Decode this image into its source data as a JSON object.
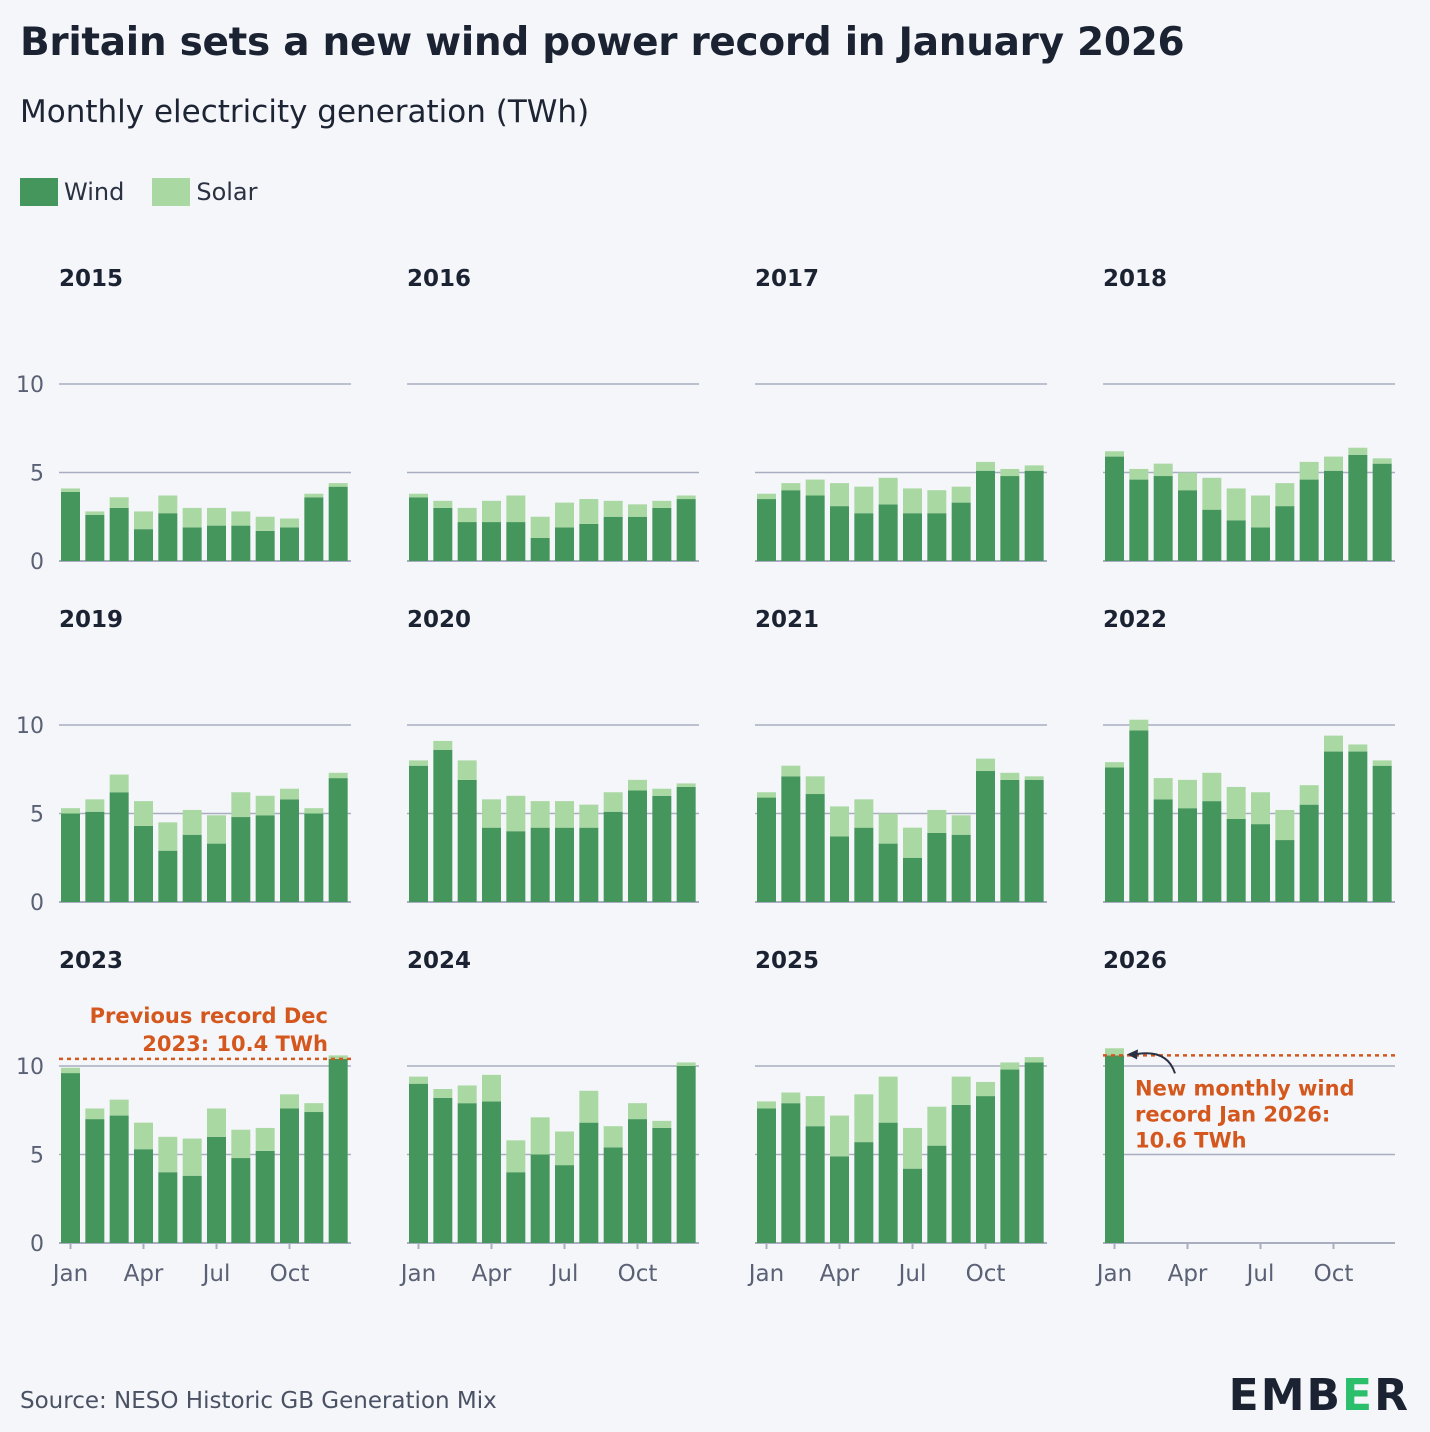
{
  "header": {
    "title": "Britain sets a new wind power record in January 2026",
    "subtitle": "Monthly electricity generation (TWh)"
  },
  "legend": [
    {
      "label": "Wind",
      "color": "#45965c"
    },
    {
      "label": "Solar",
      "color": "#a9d8a3"
    }
  ],
  "footer": {
    "source": "Source: NESO Historic GB Generation Mix",
    "logo": {
      "left": "EMB",
      "mid": "E",
      "right": "R"
    }
  },
  "chart_data": {
    "type": "bar",
    "stacked": true,
    "grid": true,
    "facet_layout": "3x4 small multiples",
    "ylim": [
      0,
      10
    ],
    "yticks": [
      0,
      5,
      10
    ],
    "x_tick_labels": [
      "Jan",
      "Apr",
      "Jul",
      "Oct"
    ],
    "categories": [
      "Jan",
      "Feb",
      "Mar",
      "Apr",
      "May",
      "Jun",
      "Jul",
      "Aug",
      "Sep",
      "Oct",
      "Nov",
      "Dec"
    ],
    "panels": [
      {
        "year": "2015",
        "wind": [
          3.9,
          2.6,
          3.0,
          1.8,
          2.7,
          1.9,
          2.0,
          2.0,
          1.7,
          1.9,
          3.6,
          4.2
        ],
        "solar": [
          0.2,
          0.2,
          0.6,
          1.0,
          1.0,
          1.1,
          1.0,
          0.8,
          0.8,
          0.5,
          0.2,
          0.2
        ]
      },
      {
        "year": "2016",
        "wind": [
          3.6,
          3.0,
          2.2,
          2.2,
          2.2,
          1.3,
          1.9,
          2.1,
          2.5,
          2.5,
          3.0,
          3.5
        ],
        "solar": [
          0.2,
          0.4,
          0.8,
          1.2,
          1.5,
          1.2,
          1.4,
          1.4,
          0.9,
          0.7,
          0.4,
          0.2
        ]
      },
      {
        "year": "2017",
        "wind": [
          3.5,
          4.0,
          3.7,
          3.1,
          2.7,
          3.2,
          2.7,
          2.7,
          3.3,
          5.1,
          4.8,
          5.1
        ],
        "solar": [
          0.3,
          0.4,
          0.9,
          1.3,
          1.5,
          1.5,
          1.4,
          1.3,
          0.9,
          0.5,
          0.4,
          0.3
        ]
      },
      {
        "year": "2018",
        "wind": [
          5.9,
          4.6,
          4.8,
          4.0,
          2.9,
          2.3,
          1.9,
          3.1,
          4.6,
          5.1,
          6.0,
          5.5
        ],
        "solar": [
          0.3,
          0.6,
          0.7,
          1.0,
          1.8,
          1.8,
          1.8,
          1.3,
          1.0,
          0.8,
          0.4,
          0.3
        ]
      },
      {
        "year": "2019",
        "wind": [
          5.0,
          5.1,
          6.2,
          4.3,
          2.9,
          3.8,
          3.3,
          4.8,
          4.9,
          5.8,
          5.0,
          7.0
        ],
        "solar": [
          0.3,
          0.7,
          1.0,
          1.4,
          1.6,
          1.4,
          1.6,
          1.4,
          1.1,
          0.6,
          0.3,
          0.3
        ]
      },
      {
        "year": "2020",
        "wind": [
          7.7,
          8.6,
          6.9,
          4.2,
          4.0,
          4.2,
          4.2,
          4.2,
          5.1,
          6.3,
          6.0,
          6.5
        ],
        "solar": [
          0.3,
          0.5,
          1.1,
          1.6,
          2.0,
          1.5,
          1.5,
          1.3,
          1.1,
          0.6,
          0.4,
          0.2
        ]
      },
      {
        "year": "2021",
        "wind": [
          5.9,
          7.1,
          6.1,
          3.7,
          4.2,
          3.3,
          2.5,
          3.9,
          3.8,
          7.4,
          6.9,
          6.9
        ],
        "solar": [
          0.3,
          0.6,
          1.0,
          1.7,
          1.6,
          1.7,
          1.7,
          1.3,
          1.1,
          0.7,
          0.4,
          0.2
        ]
      },
      {
        "year": "2022",
        "wind": [
          7.6,
          9.7,
          5.8,
          5.3,
          5.7,
          4.7,
          4.4,
          3.5,
          5.5,
          8.5,
          8.5,
          7.7
        ],
        "solar": [
          0.3,
          0.6,
          1.2,
          1.6,
          1.6,
          1.8,
          1.8,
          1.7,
          1.1,
          0.9,
          0.4,
          0.3
        ]
      },
      {
        "year": "2023",
        "wind": [
          9.6,
          7.0,
          7.2,
          5.3,
          4.0,
          3.8,
          6.0,
          4.8,
          5.2,
          7.6,
          7.4,
          10.4
        ],
        "solar": [
          0.3,
          0.6,
          0.9,
          1.5,
          2.0,
          2.1,
          1.6,
          1.6,
          1.3,
          0.8,
          0.5,
          0.2
        ]
      },
      {
        "year": "2024",
        "wind": [
          9.0,
          8.2,
          7.9,
          8.0,
          4.0,
          5.0,
          4.4,
          6.8,
          5.4,
          7.0,
          6.5,
          10.0
        ],
        "solar": [
          0.4,
          0.5,
          1.0,
          1.5,
          1.8,
          2.1,
          1.9,
          1.8,
          1.2,
          0.9,
          0.4,
          0.2
        ]
      },
      {
        "year": "2025",
        "wind": [
          7.6,
          7.9,
          6.6,
          4.9,
          5.7,
          6.8,
          4.2,
          5.5,
          7.8,
          8.3,
          9.8,
          10.2
        ],
        "solar": [
          0.4,
          0.6,
          1.7,
          2.3,
          2.7,
          2.6,
          2.3,
          2.2,
          1.6,
          0.8,
          0.4,
          0.3
        ]
      },
      {
        "year": "2026",
        "wind": [
          10.6
        ],
        "solar": [
          0.4
        ]
      }
    ],
    "annotations": [
      {
        "panel": "2023",
        "text": "Previous record Dec 2023: 10.4 TWh",
        "lines": [
          "Previous record Dec",
          "2023: 10.4 TWh"
        ],
        "value": 10.4
      },
      {
        "panel": "2026",
        "text": "New monthly wind record Jan 2026: 10.6 TWh",
        "lines": [
          "New monthly wind",
          "record Jan 2026:",
          "10.6 TWh"
        ],
        "value": 10.6
      }
    ]
  }
}
